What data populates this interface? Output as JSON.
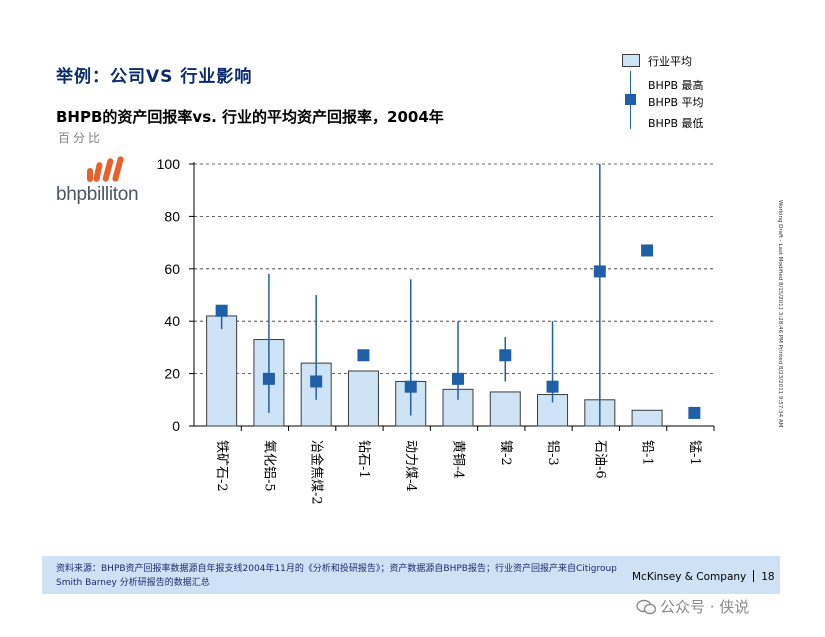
{
  "slide_title": "举例：公司VS 行业影响",
  "logo_text": "bhpbilliton",
  "chart_data": {
    "type": "bar",
    "title": "BHPB的资产回报率vs. 行业的平均资产回报率，2004年",
    "ylabel": "百分比",
    "ylim": [
      0,
      100
    ],
    "yticks": [
      0,
      20,
      40,
      60,
      80,
      100
    ],
    "grid": true,
    "categories": [
      "铁矿石-2",
      "氧化铝-5",
      "冶金焦煤-2",
      "钻石-1",
      "动力煤-4",
      "黄铜-4",
      "镍-2",
      "铝-3",
      "石油-6",
      "铅-1",
      "锰-1"
    ],
    "series": [
      {
        "name": "行业平均",
        "values": [
          42,
          33,
          24,
          21,
          17,
          14,
          13,
          12,
          10,
          6,
          null
        ]
      },
      {
        "name": "BHPB 平均",
        "values": [
          44,
          18,
          17,
          27,
          15,
          18,
          27,
          15,
          59,
          67,
          5
        ]
      },
      {
        "name": "BHPB 最高",
        "values": [
          44,
          58,
          50,
          null,
          56,
          40,
          34,
          40,
          100,
          null,
          null
        ]
      },
      {
        "name": "BHPB 最低",
        "values": [
          37,
          5,
          10,
          null,
          4,
          10,
          17,
          9,
          0,
          null,
          null
        ]
      }
    ],
    "legend": {
      "position": "top-right",
      "items": [
        "行业平均",
        "BHPB 最高",
        "BHPB 平均",
        "BHPB 最低"
      ]
    },
    "colors": {
      "bar_fill": "#cfe3f7",
      "bar_stroke": "#3c3c3c",
      "marker": "#1f5fa8",
      "whisker": "#1f5fa8"
    }
  },
  "side_note": "Working Draft - Last Modified 8/15/2011 3:28:46 PM     Printed 8/23/2011 9:57:34 AM",
  "footer": {
    "source": "资料来源：BHPB资产回报率数据源自年报支线2004年11月的《分析和投研报告》；资产数据源自BHPB报告；行业资产回报产来自Citigroup Smith Barney 分析研报告的数据汇总",
    "brand": "McKinsey & Company",
    "page": "18"
  },
  "watermark": "公众号 · 侠说"
}
